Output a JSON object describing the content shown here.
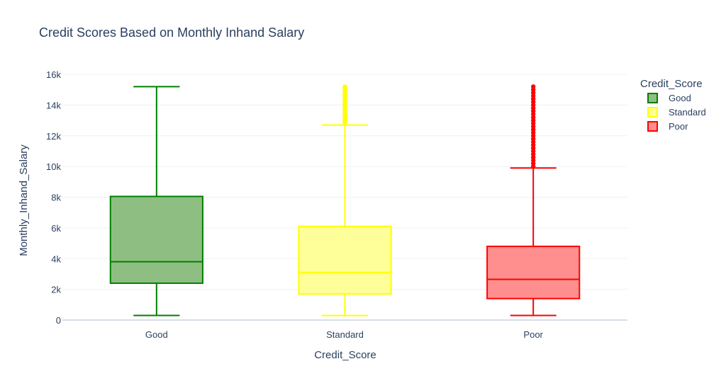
{
  "chart_data": {
    "type": "box",
    "title": "Credit Scores Based on Monthly Inhand Salary",
    "xlabel": "Credit_Score",
    "ylabel": "Monthly_Inhand_Salary",
    "ylim": [
      0,
      16000
    ],
    "yticks": [
      {
        "value": 0,
        "label": "0"
      },
      {
        "value": 2000,
        "label": "2k"
      },
      {
        "value": 4000,
        "label": "4k"
      },
      {
        "value": 6000,
        "label": "6k"
      },
      {
        "value": 8000,
        "label": "8k"
      },
      {
        "value": 10000,
        "label": "10k"
      },
      {
        "value": 12000,
        "label": "12k"
      },
      {
        "value": 14000,
        "label": "14k"
      },
      {
        "value": 16000,
        "label": "16k"
      }
    ],
    "grid": true,
    "legend": {
      "title": "Credit_Score",
      "placement": "top-right"
    },
    "series": [
      {
        "name": "Good",
        "color": "#008000",
        "fill": "#8fbe82",
        "min": 300,
        "q1": 2400,
        "median": 3800,
        "q3": 8050,
        "max": 15200,
        "outliers": []
      },
      {
        "name": "Standard",
        "color": "#ffff00",
        "fill": "#ffff99",
        "min": 300,
        "q1": 1700,
        "median": 3100,
        "q3": 6100,
        "max": 12700,
        "outliers": [
          12800,
          12900,
          13000,
          13100,
          13200,
          13300,
          13400,
          13500,
          13600,
          13700,
          13800,
          13900,
          14000,
          14100,
          14200,
          14300,
          14400,
          14500,
          14600,
          14700,
          14800,
          14900,
          15000,
          15100,
          15200
        ]
      },
      {
        "name": "Poor",
        "color": "#ff0000",
        "fill": "#ff8f8f",
        "min": 300,
        "q1": 1400,
        "median": 2650,
        "q3": 4800,
        "max": 9900,
        "outliers": [
          10000,
          10200,
          10400,
          10600,
          10800,
          11000,
          11200,
          11400,
          11600,
          11800,
          12000,
          12200,
          12400,
          12600,
          12800,
          13000,
          13200,
          13400,
          13600,
          13800,
          14000,
          14200,
          14400,
          14600,
          14800,
          15000,
          15200
        ]
      }
    ]
  }
}
